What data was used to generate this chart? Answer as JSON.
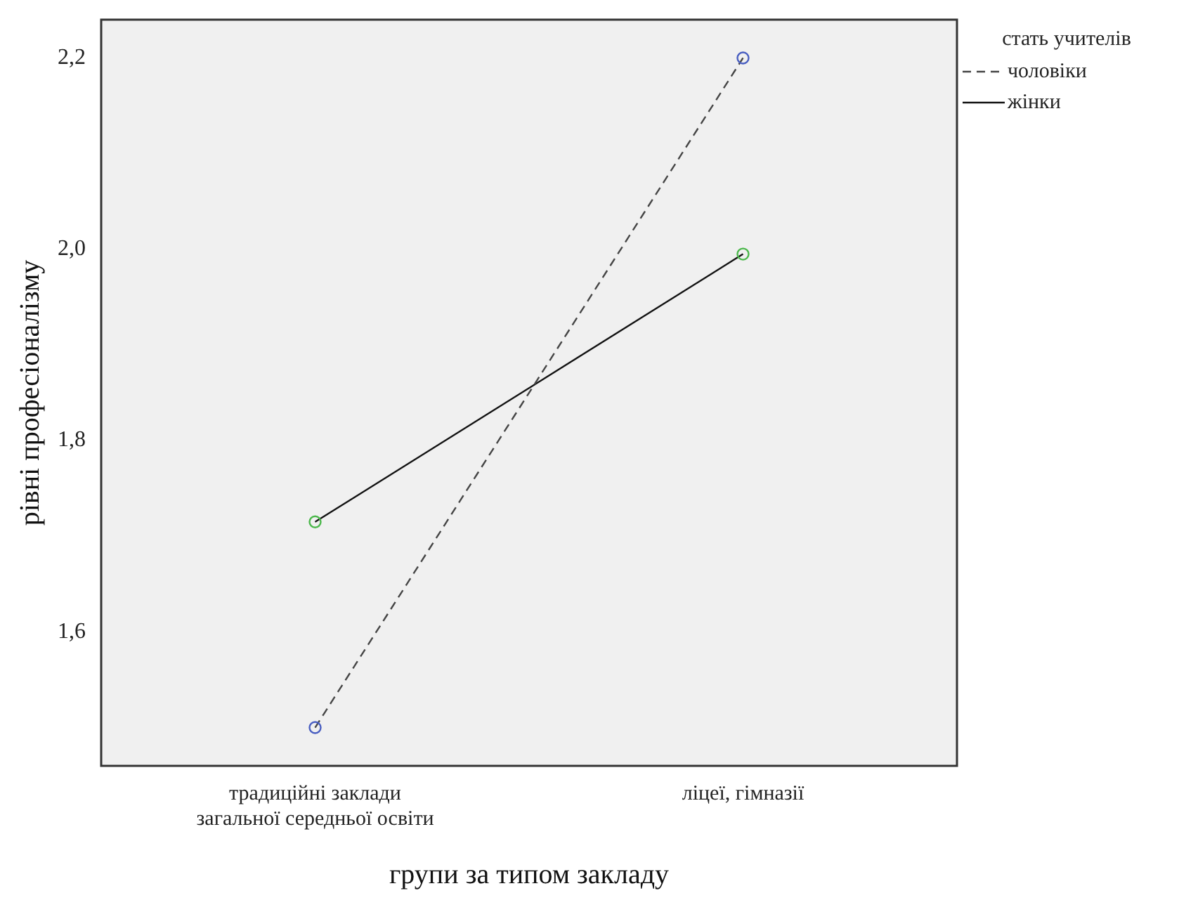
{
  "chart_data": {
    "type": "line",
    "xlabel": "групи за типом закладу",
    "ylabel": "рівні професіоналізму",
    "legend_title": "стать учителів",
    "legend": "right",
    "marker": "circle",
    "grid": false,
    "categories": [
      "традиційні заклади загальної середньої освіти",
      "ліцеї, гімназії"
    ],
    "ylim": [
      1.46,
      2.24
    ],
    "yticks": [
      {
        "value": 1.6,
        "label": "1,6"
      },
      {
        "value": 1.8,
        "label": "1,8"
      },
      {
        "value": 2.0,
        "label": "2,0"
      },
      {
        "value": 2.2,
        "label": "2,2"
      }
    ],
    "series": [
      {
        "name": "чоловіки",
        "color": "#454545",
        "colors": [
          "#4a5fc1",
          "#4a5fc1"
        ],
        "line_style": "dashed",
        "values": [
          1.5,
          2.2
        ]
      },
      {
        "name": "жінки",
        "color": "#111111",
        "colors": [
          "#4cb84c",
          "#4cb84c"
        ],
        "line_style": "solid",
        "values": [
          1.715,
          1.995
        ]
      }
    ]
  }
}
